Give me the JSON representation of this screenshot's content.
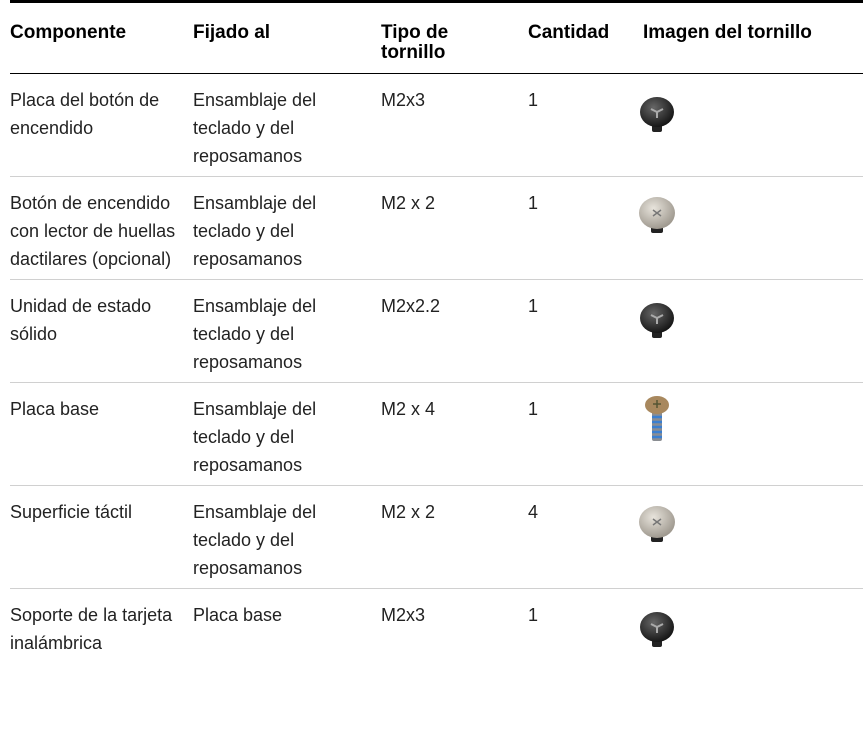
{
  "table": {
    "headers": [
      "Componente",
      "Fijado al",
      "Tipo de tornillo",
      "Cantidad",
      "Imagen del tornillo"
    ],
    "rows": [
      [
        "Placa del botón de encendido",
        "Ensamblaje del teclado y del reposamanos",
        "M2x3",
        "1"
      ],
      [
        "Botón de encendido con lector de huellas dactilares (opcional)",
        "Ensamblaje del teclado y del reposamanos",
        "M2 x 2",
        "1"
      ],
      [
        "Unidad de estado sólido",
        "Ensamblaje del teclado y del reposamanos",
        "M2x2.2",
        "1"
      ],
      [
        "Placa base",
        "Ensamblaje del teclado y del reposamanos",
        "M2 x 4",
        "1"
      ],
      [
        "Superficie táctil",
        "Ensamblaje del teclado y del reposamanos",
        "M2 x 2",
        "4"
      ],
      [
        "Soporte de la tarjeta inalámbrica",
        "Placa base",
        "M2x3",
        "1"
      ]
    ]
  }
}
